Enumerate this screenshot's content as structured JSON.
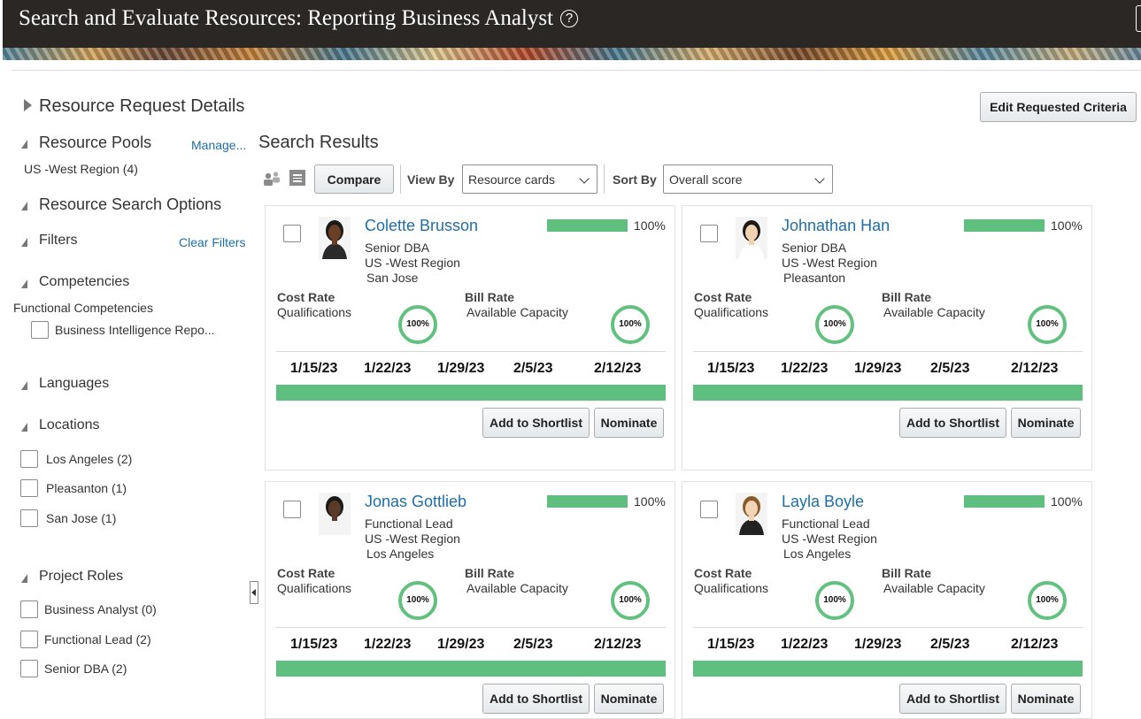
{
  "header": {
    "title": "Search and Evaluate Resources: Reporting Business Analyst",
    "help_icon": "question-circle-icon"
  },
  "request_details": {
    "title": "Resource Request Details",
    "edit_button": "Edit Requested Criteria"
  },
  "sidebar": {
    "resource_pools": {
      "title": "Resource Pools",
      "manage_link": "Manage...",
      "pool": "US -West Region (4)"
    },
    "search_options": {
      "title": "Resource Search Options"
    },
    "filters": {
      "title": "Filters",
      "clear_link": "Clear Filters"
    },
    "competencies": {
      "title": "Competencies",
      "subtitle": "Functional Competencies",
      "items": [
        "Business Intelligence Repo..."
      ]
    },
    "languages": {
      "title": "Languages"
    },
    "locations": {
      "title": "Locations",
      "items": [
        "Los Angeles (2)",
        "Pleasanton (1)",
        "San Jose (1)"
      ]
    },
    "project_roles": {
      "title": "Project Roles",
      "items": [
        "Business Analyst (0)",
        "Functional Lead (2)",
        "Senior DBA (2)"
      ]
    }
  },
  "results": {
    "title": "Search Results",
    "toolbar": {
      "compare": "Compare",
      "view_by_label": "View By",
      "view_by_value": "Resource cards",
      "sort_by_label": "Sort By",
      "sort_by_value": "Overall score"
    },
    "cards": [
      {
        "name": "Colette Brusson",
        "role": "Senior DBA",
        "region": "US -West Region",
        "city": "San Jose",
        "score": "100%",
        "score_fraction": 1.0,
        "qualifications": "100%",
        "capacity": "100%"
      },
      {
        "name": "Johnathan Han",
        "role": "Senior DBA",
        "region": "US -West Region",
        "city": "Pleasanton",
        "score": "100%",
        "score_fraction": 1.0,
        "qualifications": "100%",
        "capacity": "100%"
      },
      {
        "name": "Jonas Gottlieb",
        "role": "Functional Lead",
        "region": "US -West Region",
        "city": "Los Angeles",
        "score": "100%",
        "score_fraction": 1.0,
        "qualifications": "100%",
        "capacity": "100%"
      },
      {
        "name": "Layla Boyle",
        "role": "Functional Lead",
        "region": "US -West Region",
        "city": "Los Angeles",
        "score": "100%",
        "score_fraction": 1.0,
        "qualifications": "100%",
        "capacity": "100%"
      }
    ],
    "card_labels": {
      "cost_rate": "Cost Rate",
      "qualifications": "Qualifications",
      "bill_rate": "Bill Rate",
      "available_capacity": "Available Capacity",
      "add_to_shortlist": "Add to Shortlist",
      "nominate": "Nominate"
    },
    "dates": [
      "1/15/23",
      "1/22/23",
      "1/29/23",
      "2/5/23",
      "2/12/23"
    ]
  },
  "colors": {
    "accent_green": "#5fbf7f",
    "link_blue": "#1e6fa8",
    "header_bg": "#2b2725"
  }
}
